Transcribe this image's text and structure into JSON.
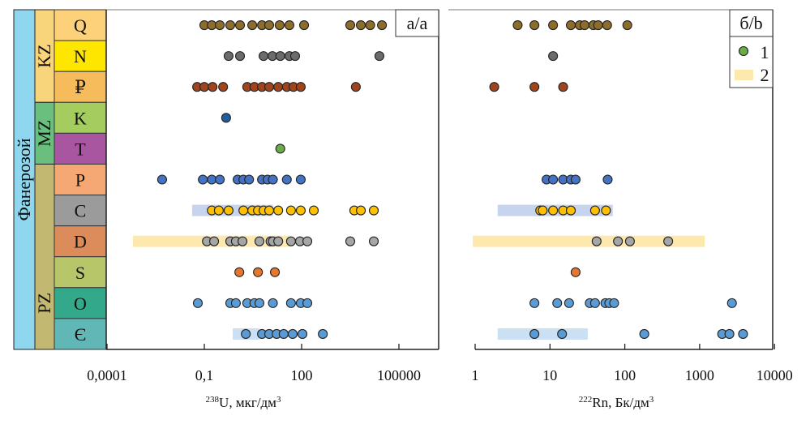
{
  "chart_data": [
    {
      "type": "scatter",
      "panel_label": "a/a",
      "xlabel_sup": "238",
      "xlabel": "U, мкг/дм",
      "xlabel_unit_sup": "3",
      "xscale": "log",
      "xlim": [
        0.0001,
        1600000
      ],
      "xticks": [
        0.0001,
        0.1,
        100,
        100000
      ],
      "xtick_labels": [
        "0,0001",
        "0,1",
        "100",
        "100000"
      ],
      "rows": [
        {
          "period": "Q",
          "values": [
            0.1,
            0.17,
            0.3,
            0.63,
            1.26,
            3,
            6,
            10,
            21,
            42,
            119,
            3162,
            6700,
            13000,
            30000
          ]
        },
        {
          "period": "N",
          "values": [
            0.56,
            1.26,
            6.7,
            12.6,
            22,
            42,
            63,
            25000
          ]
        },
        {
          "period": "₽",
          "values": [
            0.06,
            0.1,
            0.18,
            0.38,
            2.1,
            3.5,
            6,
            10,
            19,
            35,
            56,
            94,
            4700
          ]
        },
        {
          "period": "K",
          "values": [
            0.47
          ]
        },
        {
          "period": "T",
          "values": [
            22
          ]
        },
        {
          "period": "P",
          "values": [
            0.005,
            0.09,
            0.17,
            0.3,
            1.06,
            1.6,
            2.4,
            6,
            8.9,
            13,
            35,
            94
          ]
        },
        {
          "period": "C",
          "values": [
            0.17,
            0.28,
            0.56,
            1.6,
            3,
            4.5,
            6.7,
            10,
            19,
            47,
            94,
            237,
            4200,
            6700,
            16800
          ],
          "band": [
            0.042,
            13
          ]
        },
        {
          "period": "D",
          "values": [
            0.12,
            0.2,
            0.63,
            0.94,
            1.5,
            5,
            11,
            13,
            19,
            47,
            89,
            150,
            3162,
            16800
          ],
          "band": [
            0.00063,
            42
          ]
        },
        {
          "period": "S",
          "values": [
            1.2,
            4.5,
            15
          ]
        },
        {
          "period": "O",
          "values": [
            0.063,
            0.63,
            0.94,
            2.1,
            3.5,
            5,
            13,
            47,
            94,
            150
          ]
        },
        {
          "period": "Є",
          "values": [
            1.9,
            6,
            10,
            17,
            28,
            53,
            106,
            450
          ],
          "band": [
            0.75,
            5
          ]
        }
      ]
    },
    {
      "type": "scatter",
      "panel_label": "б/b",
      "xlabel_sup": "222",
      "xlabel": "Rn, Бк/дм",
      "xlabel_unit_sup": "3",
      "xscale": "log",
      "xlim": [
        0.44,
        10000
      ],
      "xticks": [
        1,
        10,
        100,
        1000,
        10000
      ],
      "xtick_labels": [
        "1",
        "10",
        "100",
        "1000",
        "10000"
      ],
      "legend": {
        "position": "top-right",
        "entries": [
          {
            "label": "1",
            "kind": "point"
          },
          {
            "label": "2",
            "kind": "band"
          }
        ]
      },
      "rows": [
        {
          "period": "Q",
          "values": [
            3.7,
            6.2,
            11,
            19,
            25,
            29,
            38,
            44,
            58,
            108
          ]
        },
        {
          "period": "N",
          "values": [
            11
          ]
        },
        {
          "period": "₽",
          "values": [
            1.8,
            6.2,
            15
          ]
        },
        {
          "period": "K",
          "values": []
        },
        {
          "period": "T",
          "values": []
        },
        {
          "period": "P",
          "values": [
            9,
            11,
            15,
            19,
            22,
            59
          ]
        },
        {
          "period": "C",
          "values": [
            7.4,
            8,
            11,
            15,
            19,
            40,
            56
          ],
          "band": [
            2.0,
            69
          ]
        },
        {
          "period": "D",
          "values": [
            42,
            81,
            117,
            380
          ],
          "band": [
            0.93,
            1170
          ]
        },
        {
          "period": "S",
          "values": [
            22
          ]
        },
        {
          "period": "O",
          "values": [
            6.2,
            12.5,
            18,
            34,
            40,
            55,
            62,
            72,
            2700
          ]
        },
        {
          "period": "Є",
          "values": [
            6.2,
            14.5,
            182,
            2000,
            2500,
            3800
          ],
          "band": [
            2.0,
            32
          ]
        }
      ]
    }
  ],
  "stratigraphy": {
    "eon": "Фанерозой",
    "eras": [
      {
        "label": "KZ",
        "rows": [
          0,
          2
        ],
        "color": "#f8d47a"
      },
      {
        "label": "MZ",
        "rows": [
          3,
          4
        ],
        "color": "#6bbf7e"
      },
      {
        "label": "PZ",
        "rows": [
          5,
          10
        ],
        "color": "#c2b872"
      }
    ],
    "periods": [
      "Q",
      "N",
      "₽",
      "K",
      "T",
      "P",
      "C",
      "D",
      "S",
      "O",
      "Є"
    ],
    "period_colors": [
      "#fdd17a",
      "#ffe600",
      "#f6bb5a",
      "#a5cc5e",
      "#a8569f",
      "#f5a874",
      "#9b9b9b",
      "#dc8c5a",
      "#b8c66a",
      "#33a88a",
      "#60b7b6"
    ],
    "eon_color": "#8fd7ef"
  },
  "point_colors": [
    "#8c6d2c",
    "#6b6b6b",
    "#9f441c",
    "#1f5f9f",
    "#6aad45",
    "#4472c4",
    "#ffc000",
    "#a6a6a6",
    "#e8772e",
    "#5b9bd5",
    "#5b9bd5"
  ],
  "band_colors": {
    "C": "#c8d3ee",
    "D": "#fde8ae",
    "Є": "#cce0f3"
  },
  "legend_point_color": "#6aad45",
  "legend_band_color": "#fde8ae"
}
